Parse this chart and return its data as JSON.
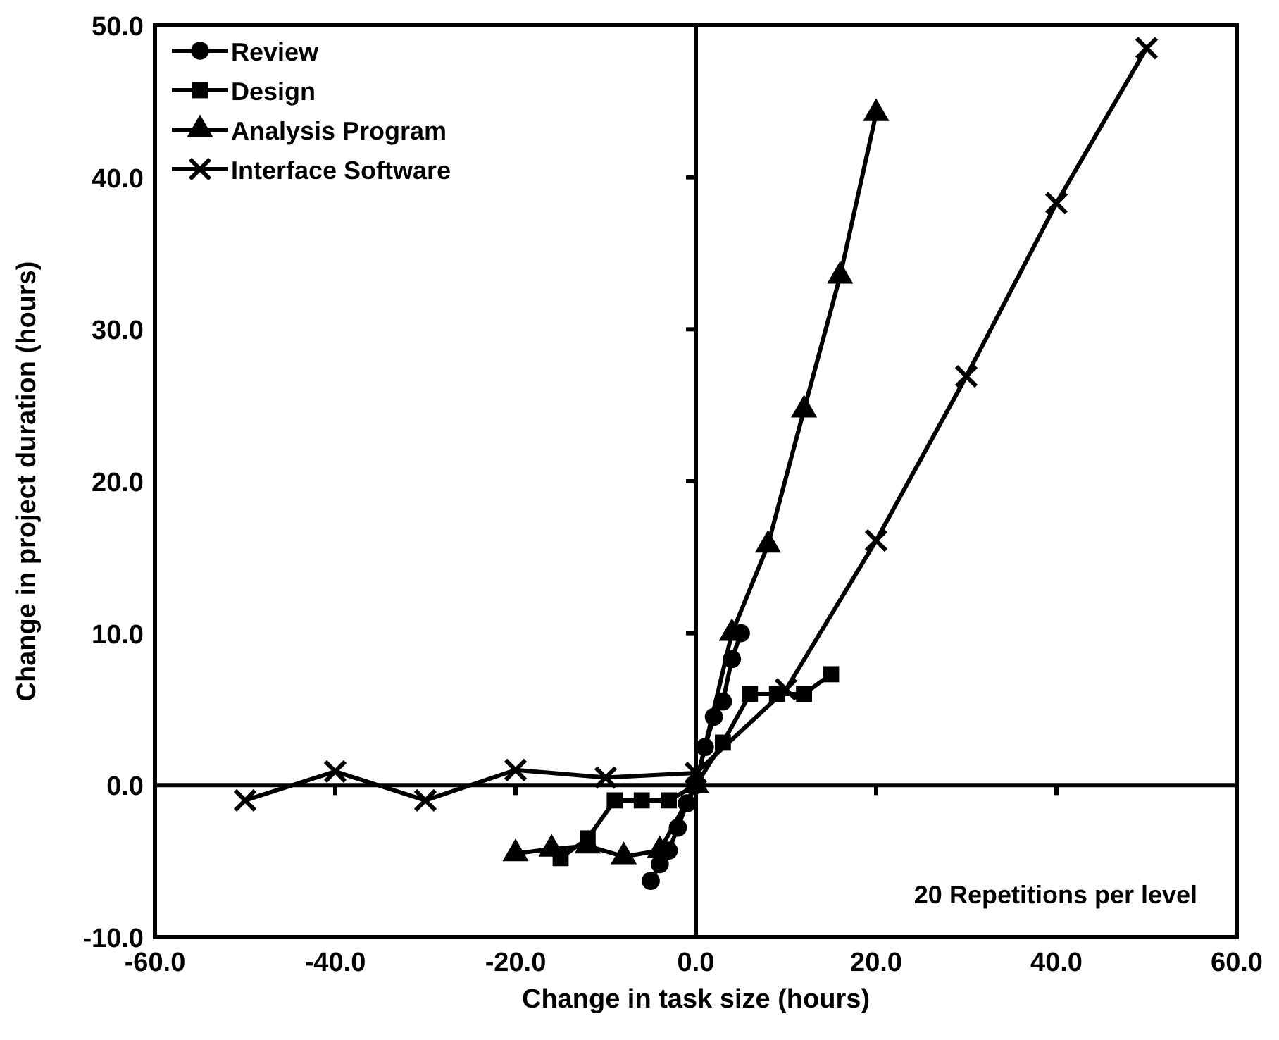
{
  "chart_data": {
    "type": "line",
    "xlabel": "Change in task size (hours)",
    "ylabel": "Change in project duration (hours)",
    "xlim": [
      -60,
      60
    ],
    "ylim": [
      -10,
      50
    ],
    "xticks": [
      {
        "value": -60,
        "label": "-60.0"
      },
      {
        "value": -40,
        "label": "-40.0"
      },
      {
        "value": -20,
        "label": "-20.0"
      },
      {
        "value": 0,
        "label": "0.0"
      },
      {
        "value": 20,
        "label": "20.0"
      },
      {
        "value": 40,
        "label": "40.0"
      },
      {
        "value": 60,
        "label": "60.0"
      }
    ],
    "yticks": [
      {
        "value": -10,
        "label": "-10.0"
      },
      {
        "value": 0,
        "label": "0.0"
      },
      {
        "value": 10,
        "label": "10.0"
      },
      {
        "value": 20,
        "label": "20.0"
      },
      {
        "value": 30,
        "label": "30.0"
      },
      {
        "value": 40,
        "label": "40.0"
      },
      {
        "value": 50,
        "label": "50.0"
      }
    ],
    "legend": "top left",
    "line_style": "solid",
    "annotations": [
      "20 Repetitions per level"
    ],
    "series": [
      {
        "name": "Review",
        "color": "#000000",
        "marker": "circle",
        "x": [
          -5,
          -4,
          -3,
          -2,
          -1,
          0,
          1,
          2,
          3,
          4,
          5
        ],
        "values": [
          -6.3,
          -5.2,
          -4.3,
          -2.8,
          -1.2,
          0,
          2.5,
          4.5,
          5.5,
          8.3,
          10.0
        ]
      },
      {
        "name": "Design",
        "color": "#000000",
        "marker": "square",
        "x": [
          -15,
          -12,
          -9,
          -6,
          -3,
          0,
          3,
          6,
          9,
          12,
          15
        ],
        "values": [
          -4.8,
          -3.5,
          -1.0,
          -1.0,
          -1.0,
          0,
          2.8,
          6.0,
          6.0,
          6.0,
          7.3
        ]
      },
      {
        "name": "Analysis Program",
        "color": "#000000",
        "marker": "triangle",
        "x": [
          -20,
          -16,
          -12,
          -8,
          -4,
          0,
          4,
          8,
          12,
          16,
          20
        ],
        "values": [
          -4.5,
          -4.2,
          -4.0,
          -4.7,
          -4.3,
          0,
          10.0,
          15.8,
          24.7,
          33.5,
          44.2
        ]
      },
      {
        "name": "Interface Software",
        "color": "#000000",
        "marker": "cross",
        "x": [
          -50,
          -40,
          -30,
          -20,
          -10,
          0,
          10,
          20,
          30,
          40,
          50
        ],
        "values": [
          -1.0,
          0.9,
          -1.0,
          1.0,
          0.5,
          0.8,
          6.3,
          16.1,
          26.9,
          38.3,
          48.5
        ]
      }
    ]
  }
}
